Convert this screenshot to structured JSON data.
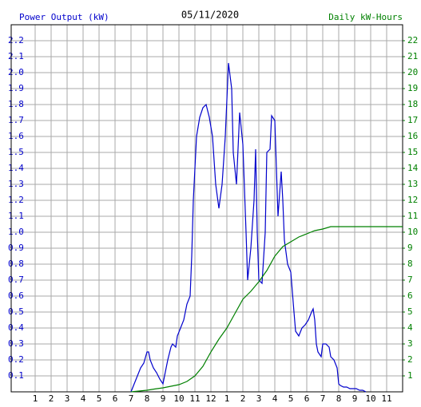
{
  "chart_data": {
    "type": "line",
    "title": "05/11/2020",
    "ylabel": "Power Output (kW)",
    "y2label": "Daily kW-Hours",
    "grid": true,
    "xlim": [
      -0.5,
      24
    ],
    "xticks": [
      1,
      2,
      3,
      4,
      5,
      6,
      7,
      8,
      9,
      10,
      11,
      12,
      {
        "value": 13,
        "label": "1"
      },
      {
        "value": 14,
        "label": "2"
      },
      {
        "value": 15,
        "label": "3"
      },
      {
        "value": 16,
        "label": "4"
      },
      {
        "value": 17,
        "label": "5"
      },
      {
        "value": 18,
        "label": "6"
      },
      {
        "value": 19,
        "label": "7"
      },
      {
        "value": 20,
        "label": "8"
      },
      {
        "value": 21,
        "label": "9"
      },
      {
        "value": 22,
        "label": "10"
      },
      {
        "value": 23,
        "label": "11"
      }
    ],
    "ylim": [
      0,
      2.3
    ],
    "yticks": [
      0.1,
      0.2,
      0.3,
      0.4,
      0.5,
      0.6,
      0.7,
      0.8,
      0.9,
      {
        "value": 1,
        "label": "1.0"
      },
      1.1,
      1.2,
      1.3,
      1.4,
      1.5,
      1.6,
      1.7,
      1.8,
      1.9,
      {
        "value": 2,
        "label": "2.0"
      },
      2.1,
      2.2
    ],
    "y2lim": [
      0,
      23
    ],
    "y2ticks": [
      1,
      2,
      3,
      4,
      5,
      6,
      7,
      8,
      9,
      10,
      11,
      12,
      13,
      14,
      15,
      16,
      17,
      18,
      19,
      20,
      21,
      22
    ],
    "series": [
      {
        "color": "#0000cc",
        "x": [
          7.0,
          7.2,
          7.4,
          7.6,
          7.8,
          8.0,
          8.1,
          8.2,
          8.4,
          8.6,
          8.8,
          9.0,
          9.1,
          9.3,
          9.5,
          9.6,
          9.8,
          9.9,
          10.1,
          10.3,
          10.5,
          10.7,
          10.8,
          10.9,
          11.1,
          11.3,
          11.5,
          11.7,
          11.9,
          12.1,
          12.3,
          12.5,
          12.7,
          12.9,
          13.1,
          13.3,
          13.4,
          13.6,
          13.8,
          14.0,
          14.2,
          14.3,
          14.5,
          14.7,
          14.8,
          14.9,
          15.0,
          15.2,
          15.4,
          15.5,
          15.7,
          15.8,
          16.0,
          16.1,
          16.2,
          16.4,
          16.5,
          16.6,
          16.8,
          17.0,
          17.2,
          17.3,
          17.5,
          17.7,
          17.9,
          18.1,
          18.3,
          18.4,
          18.5,
          18.6,
          18.7,
          18.9,
          19.0,
          19.2,
          19.4,
          19.5,
          19.7,
          19.9,
          20.0,
          20.1,
          20.3,
          20.5,
          20.7,
          20.9,
          21.1,
          21.3,
          21.5,
          21.7
        ],
        "values": [
          0,
          0.05,
          0.1,
          0.15,
          0.18,
          0.25,
          0.25,
          0.2,
          0.15,
          0.12,
          0.08,
          0.05,
          0.1,
          0.2,
          0.28,
          0.3,
          0.28,
          0.35,
          0.4,
          0.45,
          0.55,
          0.6,
          0.85,
          1.2,
          1.6,
          1.72,
          1.78,
          1.8,
          1.72,
          1.6,
          1.3,
          1.15,
          1.3,
          1.6,
          2.06,
          1.9,
          1.5,
          1.3,
          1.75,
          1.55,
          1.0,
          0.7,
          0.9,
          1.2,
          1.52,
          1.0,
          0.7,
          0.68,
          1.0,
          1.5,
          1.52,
          1.73,
          1.7,
          1.4,
          1.1,
          1.38,
          1.2,
          0.95,
          0.8,
          0.75,
          0.5,
          0.38,
          0.35,
          0.4,
          0.42,
          0.45,
          0.5,
          0.52,
          0.45,
          0.3,
          0.25,
          0.22,
          0.3,
          0.3,
          0.28,
          0.22,
          0.2,
          0.15,
          0.05,
          0.04,
          0.03,
          0.03,
          0.02,
          0.02,
          0.02,
          0.01,
          0.01,
          0
        ]
      },
      {
        "color": "#008000",
        "axis": "y2",
        "x": [
          7,
          7.5,
          8,
          8.5,
          9,
          9.5,
          10,
          10.5,
          11,
          11.5,
          12,
          12.5,
          13,
          13.5,
          14,
          14.5,
          15,
          15.5,
          16,
          16.5,
          17,
          17.5,
          18,
          18.5,
          19,
          19.5,
          20,
          24
        ],
        "values": [
          0,
          0.05,
          0.1,
          0.18,
          0.25,
          0.35,
          0.45,
          0.65,
          1.0,
          1.6,
          2.5,
          3.3,
          4.0,
          4.9,
          5.8,
          6.3,
          6.9,
          7.6,
          8.5,
          9.1,
          9.4,
          9.7,
          9.9,
          10.1,
          10.2,
          10.35,
          10.35,
          10.35
        ]
      }
    ]
  }
}
